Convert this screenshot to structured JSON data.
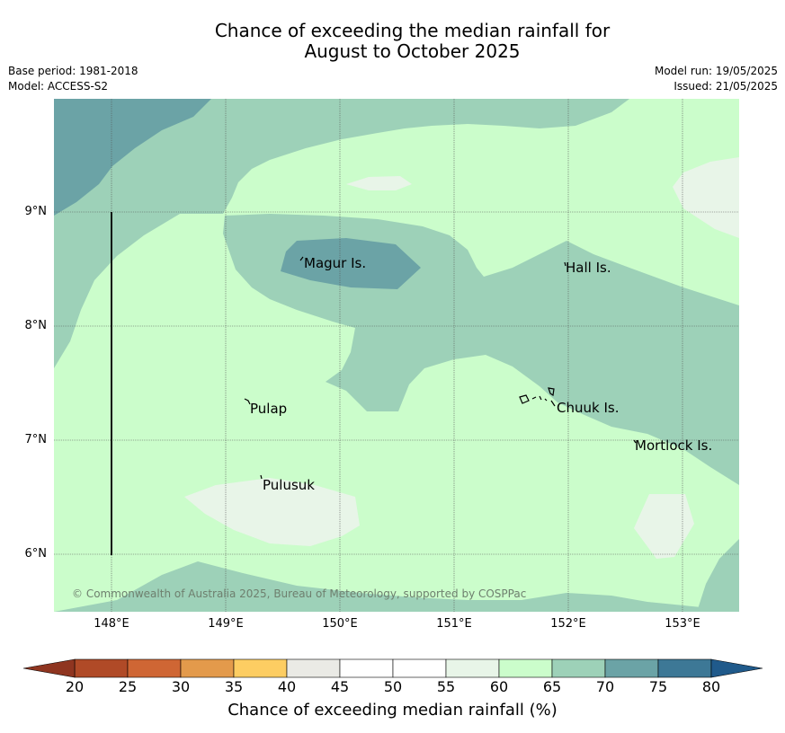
{
  "title": {
    "line1": "Chance of exceeding the median rainfall for",
    "line2": "August to October 2025"
  },
  "meta_left": {
    "base_period": "Base period: 1981-2018",
    "model": "Model: ACCESS-S2"
  },
  "meta_right": {
    "model_run": "Model run: 19/05/2025",
    "issued": "Issued: 21/05/2025"
  },
  "map": {
    "lat_labels": [
      "9°N",
      "8°N",
      "7°N",
      "6°N"
    ],
    "lon_labels": [
      "148°E",
      "149°E",
      "150°E",
      "151°E",
      "152°E",
      "153°E"
    ],
    "places": [
      {
        "name": "Magur Is."
      },
      {
        "name": "Hall Is."
      },
      {
        "name": "Pulap"
      },
      {
        "name": "Chuuk Is."
      },
      {
        "name": "Mortlock Is."
      },
      {
        "name": "Pulusuk"
      }
    ],
    "copyright": "© Commonwealth of Australia 2025, Bureau of Meteorology, supported by COSPPac"
  },
  "colorbar": {
    "labels": [
      "20",
      "25",
      "30",
      "35",
      "40",
      "45",
      "50",
      "55",
      "60",
      "65",
      "70",
      "75",
      "80"
    ],
    "colors": [
      "#b04a27",
      "#cf6634",
      "#e39a4b",
      "#fdcd62",
      "#eaeae5",
      "#ffffff",
      "#ffffff",
      "#e8f5e8",
      "#cbfdcb",
      "#9dd1b8",
      "#6ba3a6",
      "#3d7896"
    ],
    "under_color": "#8f3520",
    "over_color": "#205a8b",
    "title": "Chance of exceeding median rainfall (%)"
  }
}
